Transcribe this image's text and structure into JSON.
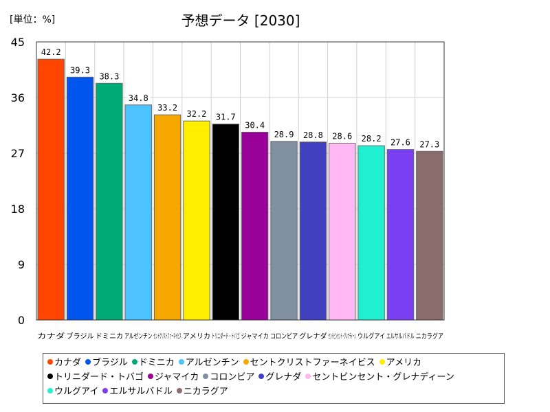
{
  "header": {
    "unit_label": "[単位：%]",
    "title": "予想データ [2030]"
  },
  "chart_data": {
    "type": "bar",
    "title": "予想データ [2030]",
    "ylabel": "[単位：%]",
    "xlabel": "",
    "ylim": [
      0,
      45
    ],
    "yticks": [
      0,
      9,
      18,
      27,
      36,
      45
    ],
    "grid": true,
    "legend_position": "bottom",
    "categories": [
      "カナダ",
      "ブラジル",
      "ドミニカ",
      "アルゼンチン",
      "セントクリストファーネイビス",
      "アメリカ",
      "トリニダード・トバゴ",
      "ジャマイカ",
      "コロンビア",
      "グレナダ",
      "セントビンセント・グレナディーン",
      "ウルグアイ",
      "エルサルバドル",
      "ニカラグア"
    ],
    "values": [
      42.2,
      39.3,
      38.3,
      34.8,
      33.2,
      32.2,
      31.7,
      30.4,
      28.9,
      28.8,
      28.6,
      28.2,
      27.6,
      27.3
    ],
    "value_labels": [
      "42.2",
      "39.3",
      "38.3",
      "34.8",
      "33.2",
      "32.2",
      "31.7",
      "30.4",
      "28.9",
      "28.8",
      "28.6",
      "28.2",
      "27.6",
      "27.3"
    ],
    "colors": [
      "#ff4500",
      "#0055ee",
      "#00aa77",
      "#4dc3ff",
      "#f7a800",
      "#ffee00",
      "#000000",
      "#990099",
      "#8090a0",
      "#4040c0",
      "#ffb8f4",
      "#20f0d0",
      "#7b3ff2",
      "#8b6c6c"
    ]
  },
  "legend": {
    "rows": [
      [
        0,
        1,
        2,
        3,
        4,
        5
      ],
      [
        6,
        7,
        8,
        9,
        10
      ],
      [
        11,
        12,
        13
      ]
    ]
  }
}
